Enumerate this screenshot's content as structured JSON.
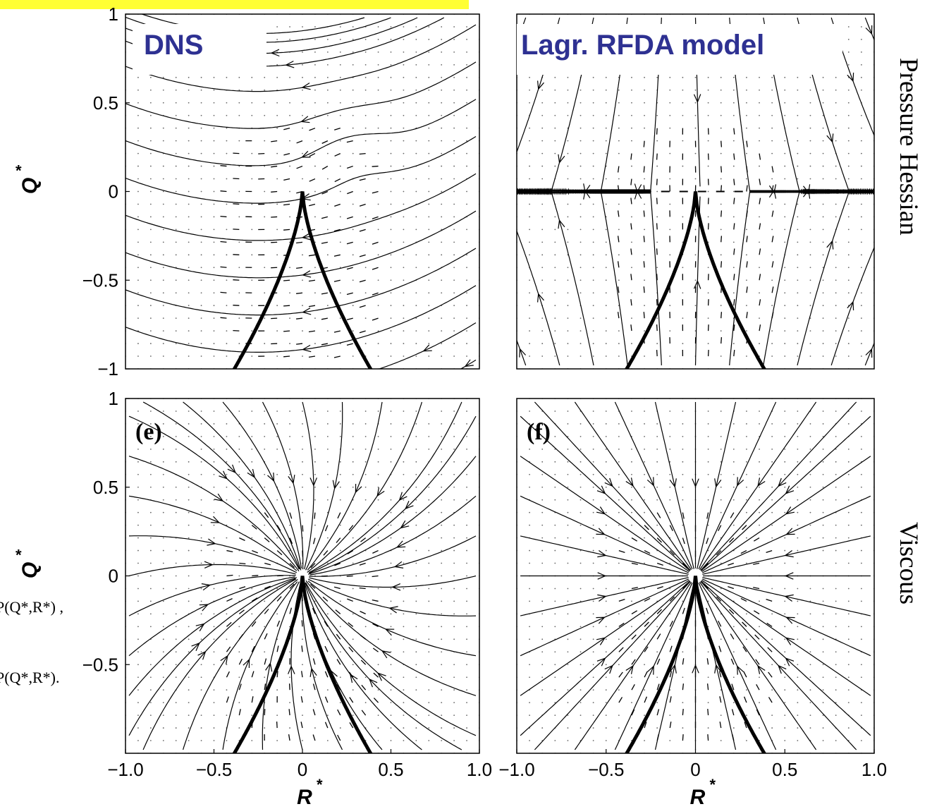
{
  "colors": {
    "highlight": "#ffff33",
    "banner_text": "#2e3192",
    "ink": "#000000"
  },
  "banners": {
    "dns": "DNS",
    "model": "Lagr. RFDA model"
  },
  "row_labels": {
    "top": "Pressure Hessian",
    "bottom": "Viscous"
  },
  "panel_labels": {
    "e": "(e)",
    "f": "(f)"
  },
  "axes": {
    "x_label": "R",
    "x_sup": "*",
    "y_label": "Q",
    "y_sup": "*",
    "x_ticks": [
      "−1.0",
      "−0.5",
      "0",
      "0.5",
      "1.0"
    ],
    "y_ticks_top": [
      "1",
      "0.5",
      "0",
      "−0.5",
      "−1"
    ],
    "y_ticks_bottom": [
      "1",
      "0.5",
      "0",
      "−0.5"
    ]
  },
  "left_fragments": [
    "P(Q*,R*) ,",
    "P(Q*,R*)."
  ],
  "chart_data": {
    "type": "streamline-vector-field",
    "xlim": [
      -1.0,
      1.0
    ],
    "ylim": [
      -1.0,
      1.0
    ],
    "xlabel": "R*",
    "ylabel": "Q*",
    "panels": [
      {
        "position": "top-left",
        "banner": "DNS",
        "row": "Pressure Hessian"
      },
      {
        "position": "top-right",
        "banner": "Lagr. RFDA model",
        "row": "Pressure Hessian"
      },
      {
        "position": "bottom-left",
        "label": "(e)",
        "row": "Viscous"
      },
      {
        "position": "bottom-right",
        "label": "(f)",
        "row": "Viscous"
      }
    ],
    "vieillefosse_tail": "Q = -(27/4 R^2)^(1/3)"
  }
}
